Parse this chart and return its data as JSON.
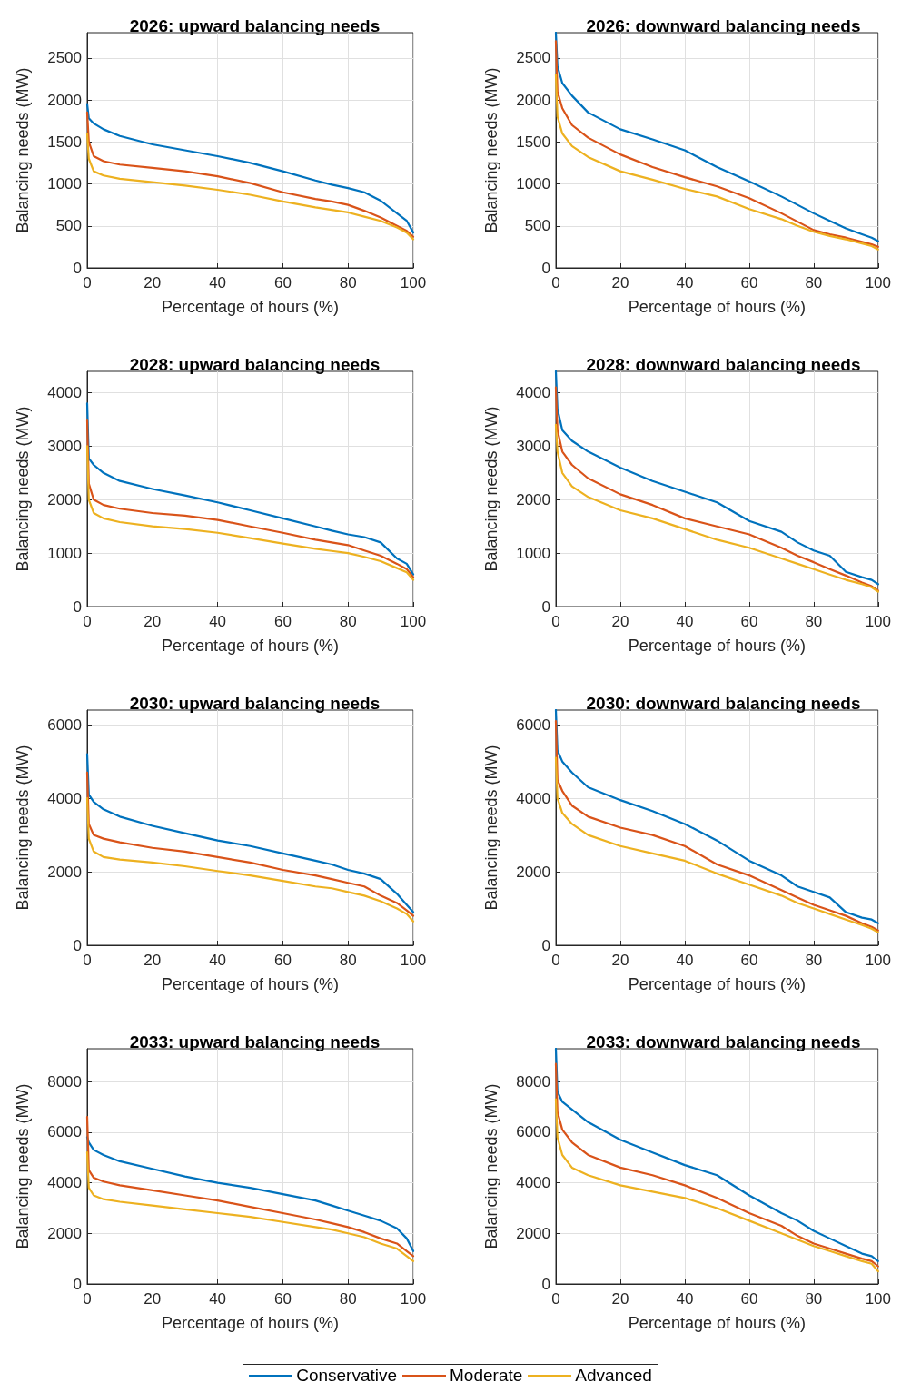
{
  "chart_data": [
    {
      "type": "line",
      "title": "2026: upward balancing needs",
      "xlabel": "Percentage of hours (%)",
      "ylabel": "Balancing needs (MW)",
      "xlim": [
        0,
        100
      ],
      "xticks": [
        0,
        20,
        40,
        60,
        80,
        100
      ],
      "ylim": [
        0,
        2800
      ],
      "yticks": [
        0,
        500,
        1000,
        1500,
        2000,
        2500
      ],
      "grid": true,
      "marker": "none",
      "line_style": "solid",
      "x": [
        0,
        0.5,
        2,
        5,
        10,
        20,
        30,
        40,
        50,
        60,
        70,
        75,
        80,
        85,
        90,
        95,
        98,
        100
      ],
      "series": [
        {
          "color": "#0072bd",
          "values": [
            1950,
            1780,
            1720,
            1650,
            1570,
            1470,
            1400,
            1330,
            1250,
            1150,
            1040,
            990,
            950,
            900,
            800,
            650,
            560,
            420
          ]
        },
        {
          "color": "#d95319",
          "values": [
            1850,
            1500,
            1330,
            1270,
            1230,
            1190,
            1150,
            1090,
            1010,
            900,
            820,
            790,
            750,
            680,
            600,
            500,
            440,
            370
          ]
        },
        {
          "color": "#edb120",
          "values": [
            1600,
            1300,
            1150,
            1100,
            1060,
            1020,
            980,
            930,
            870,
            790,
            720,
            690,
            660,
            610,
            560,
            480,
            420,
            340
          ]
        }
      ]
    },
    {
      "type": "line",
      "title": "2026: downward balancing needs",
      "xlabel": "Percentage of hours (%)",
      "ylabel": "Balancing needs (MW)",
      "xlim": [
        0,
        100
      ],
      "xticks": [
        0,
        20,
        40,
        60,
        80,
        100
      ],
      "ylim": [
        0,
        2800
      ],
      "yticks": [
        0,
        500,
        1000,
        1500,
        2000,
        2500
      ],
      "grid": true,
      "marker": "none",
      "line_style": "solid",
      "x": [
        0,
        0.5,
        2,
        5,
        10,
        20,
        30,
        40,
        50,
        60,
        70,
        75,
        80,
        85,
        90,
        95,
        98,
        100
      ],
      "series": [
        {
          "color": "#0072bd",
          "values": [
            2800,
            2400,
            2200,
            2050,
            1850,
            1650,
            1530,
            1400,
            1200,
            1030,
            850,
            750,
            650,
            560,
            470,
            400,
            360,
            320
          ]
        },
        {
          "color": "#d95319",
          "values": [
            2700,
            2100,
            1900,
            1700,
            1550,
            1350,
            1200,
            1080,
            970,
            830,
            650,
            550,
            450,
            400,
            360,
            310,
            280,
            250
          ]
        },
        {
          "color": "#edb120",
          "values": [
            2300,
            1800,
            1600,
            1450,
            1320,
            1150,
            1050,
            940,
            850,
            700,
            580,
            500,
            430,
            380,
            340,
            290,
            260,
            220
          ]
        }
      ]
    },
    {
      "type": "line",
      "title": "2028: upward balancing needs",
      "xlabel": "Percentage of hours (%)",
      "ylabel": "Balancing needs (MW)",
      "xlim": [
        0,
        100
      ],
      "xticks": [
        0,
        20,
        40,
        60,
        80,
        100
      ],
      "ylim": [
        0,
        4400
      ],
      "yticks": [
        0,
        1000,
        2000,
        3000,
        4000
      ],
      "grid": true,
      "marker": "none",
      "line_style": "solid",
      "x": [
        0,
        0.5,
        2,
        5,
        10,
        20,
        30,
        40,
        50,
        60,
        70,
        75,
        80,
        85,
        90,
        95,
        98,
        100
      ],
      "series": [
        {
          "color": "#0072bd",
          "values": [
            3800,
            2770,
            2650,
            2500,
            2350,
            2200,
            2080,
            1950,
            1800,
            1650,
            1500,
            1420,
            1350,
            1300,
            1200,
            900,
            800,
            600
          ]
        },
        {
          "color": "#d95319",
          "values": [
            3500,
            2300,
            2000,
            1900,
            1830,
            1750,
            1700,
            1620,
            1500,
            1380,
            1250,
            1200,
            1150,
            1050,
            950,
            800,
            700,
            550
          ]
        },
        {
          "color": "#edb120",
          "values": [
            3000,
            2000,
            1750,
            1650,
            1580,
            1500,
            1450,
            1380,
            1280,
            1180,
            1080,
            1040,
            1000,
            930,
            850,
            720,
            640,
            500
          ]
        }
      ]
    },
    {
      "type": "line",
      "title": "2028: downward balancing needs",
      "xlabel": "Percentage of hours (%)",
      "ylabel": "Balancing needs (MW)",
      "xlim": [
        0,
        100
      ],
      "xticks": [
        0,
        20,
        40,
        60,
        80,
        100
      ],
      "ylim": [
        0,
        4400
      ],
      "yticks": [
        0,
        1000,
        2000,
        3000,
        4000
      ],
      "grid": true,
      "marker": "none",
      "line_style": "solid",
      "x": [
        0,
        0.5,
        2,
        5,
        10,
        20,
        30,
        40,
        50,
        60,
        70,
        75,
        80,
        85,
        90,
        95,
        98,
        100
      ],
      "series": [
        {
          "color": "#0072bd",
          "values": [
            4400,
            3700,
            3300,
            3100,
            2900,
            2600,
            2350,
            2150,
            1950,
            1600,
            1400,
            1200,
            1050,
            950,
            650,
            550,
            500,
            420
          ]
        },
        {
          "color": "#d95319",
          "values": [
            4100,
            3300,
            2900,
            2650,
            2400,
            2100,
            1900,
            1650,
            1500,
            1350,
            1100,
            950,
            830,
            700,
            580,
            450,
            380,
            300
          ]
        },
        {
          "color": "#edb120",
          "values": [
            3400,
            2900,
            2500,
            2250,
            2050,
            1800,
            1650,
            1450,
            1250,
            1100,
            900,
            800,
            700,
            600,
            500,
            420,
            360,
            280
          ]
        }
      ]
    },
    {
      "type": "line",
      "title": "2030: upward balancing needs",
      "xlabel": "Percentage of hours (%)",
      "ylabel": "Balancing needs (MW)",
      "xlim": [
        0,
        100
      ],
      "xticks": [
        0,
        20,
        40,
        60,
        80,
        100
      ],
      "ylim": [
        0,
        6400
      ],
      "yticks": [
        0,
        2000,
        4000,
        6000
      ],
      "grid": true,
      "marker": "none",
      "line_style": "solid",
      "x": [
        0,
        0.5,
        2,
        5,
        10,
        20,
        30,
        40,
        50,
        60,
        70,
        75,
        80,
        85,
        90,
        95,
        98,
        100
      ],
      "series": [
        {
          "color": "#0072bd",
          "values": [
            5200,
            4100,
            3900,
            3700,
            3500,
            3250,
            3050,
            2850,
            2700,
            2500,
            2300,
            2200,
            2050,
            1950,
            1800,
            1400,
            1100,
            900
          ]
        },
        {
          "color": "#d95319",
          "values": [
            4700,
            3300,
            3000,
            2900,
            2800,
            2650,
            2550,
            2400,
            2250,
            2050,
            1900,
            1800,
            1700,
            1600,
            1350,
            1150,
            950,
            800
          ]
        },
        {
          "color": "#edb120",
          "values": [
            4000,
            2900,
            2550,
            2400,
            2330,
            2250,
            2150,
            2020,
            1900,
            1750,
            1600,
            1550,
            1450,
            1350,
            1200,
            1000,
            850,
            650
          ]
        }
      ]
    },
    {
      "type": "line",
      "title": "2030: downward balancing needs",
      "xlabel": "Percentage of hours (%)",
      "ylabel": "Balancing needs (MW)",
      "xlim": [
        0,
        100
      ],
      "xticks": [
        0,
        20,
        40,
        60,
        80,
        100
      ],
      "ylim": [
        0,
        6400
      ],
      "yticks": [
        0,
        2000,
        4000,
        6000
      ],
      "grid": true,
      "marker": "none",
      "line_style": "solid",
      "x": [
        0,
        0.5,
        2,
        5,
        10,
        20,
        30,
        40,
        50,
        60,
        70,
        75,
        80,
        85,
        90,
        95,
        98,
        100
      ],
      "series": [
        {
          "color": "#0072bd",
          "values": [
            6400,
            5300,
            5000,
            4700,
            4300,
            3950,
            3650,
            3300,
            2850,
            2300,
            1900,
            1600,
            1450,
            1300,
            900,
            750,
            700,
            600
          ]
        },
        {
          "color": "#d95319",
          "values": [
            6100,
            4500,
            4200,
            3800,
            3500,
            3200,
            3000,
            2700,
            2200,
            1900,
            1500,
            1300,
            1100,
            950,
            800,
            600,
            500,
            400
          ]
        },
        {
          "color": "#edb120",
          "values": [
            5100,
            4000,
            3600,
            3300,
            3000,
            2700,
            2500,
            2300,
            1950,
            1650,
            1350,
            1150,
            1000,
            850,
            700,
            550,
            450,
            350
          ]
        }
      ]
    },
    {
      "type": "line",
      "title": "2033: upward balancing needs",
      "xlabel": "Percentage of hours (%)",
      "ylabel": "Balancing needs (MW)",
      "xlim": [
        0,
        100
      ],
      "xticks": [
        0,
        20,
        40,
        60,
        80,
        100
      ],
      "ylim": [
        0,
        9300
      ],
      "yticks": [
        0,
        2000,
        4000,
        6000,
        8000
      ],
      "grid": true,
      "marker": "none",
      "line_style": "solid",
      "x": [
        0,
        0.5,
        2,
        5,
        10,
        20,
        30,
        40,
        50,
        60,
        70,
        75,
        80,
        85,
        90,
        95,
        98,
        100
      ],
      "series": [
        {
          "color": "#0072bd",
          "values": [
            5800,
            5600,
            5300,
            5100,
            4850,
            4550,
            4250,
            4000,
            3800,
            3550,
            3300,
            3100,
            2900,
            2700,
            2500,
            2200,
            1800,
            1300
          ]
        },
        {
          "color": "#d95319",
          "values": [
            6600,
            4500,
            4200,
            4050,
            3900,
            3700,
            3500,
            3300,
            3050,
            2800,
            2550,
            2400,
            2250,
            2050,
            1800,
            1600,
            1300,
            1100
          ]
        },
        {
          "color": "#edb120",
          "values": [
            5200,
            3800,
            3500,
            3350,
            3250,
            3100,
            2950,
            2800,
            2650,
            2450,
            2250,
            2150,
            2000,
            1850,
            1600,
            1400,
            1100,
            900
          ]
        }
      ]
    },
    {
      "type": "line",
      "title": "2033: downward balancing needs",
      "xlabel": "Percentage of hours (%)",
      "ylabel": "Balancing needs (MW)",
      "xlim": [
        0,
        100
      ],
      "xticks": [
        0,
        20,
        40,
        60,
        80,
        100
      ],
      "ylim": [
        0,
        9300
      ],
      "yticks": [
        0,
        2000,
        4000,
        6000,
        8000
      ],
      "grid": true,
      "legend": "bottom",
      "marker": "none",
      "line_style": "solid",
      "x": [
        0,
        0.5,
        2,
        5,
        10,
        20,
        30,
        40,
        50,
        60,
        70,
        75,
        80,
        85,
        90,
        95,
        98,
        100
      ],
      "series": [
        {
          "name": "Conservative",
          "color": "#0072bd",
          "values": [
            9300,
            7600,
            7200,
            6900,
            6400,
            5700,
            5200,
            4700,
            4300,
            3500,
            2800,
            2500,
            2100,
            1800,
            1500,
            1200,
            1100,
            900
          ]
        },
        {
          "name": "Moderate",
          "color": "#d95319",
          "values": [
            8700,
            6800,
            6100,
            5600,
            5100,
            4600,
            4300,
            3900,
            3400,
            2800,
            2300,
            1900,
            1600,
            1400,
            1200,
            1000,
            900,
            700
          ]
        },
        {
          "name": "Advanced",
          "color": "#edb120",
          "values": [
            7300,
            5800,
            5100,
            4600,
            4300,
            3900,
            3650,
            3400,
            3000,
            2500,
            2000,
            1750,
            1500,
            1300,
            1100,
            900,
            800,
            500
          ]
        }
      ]
    }
  ]
}
